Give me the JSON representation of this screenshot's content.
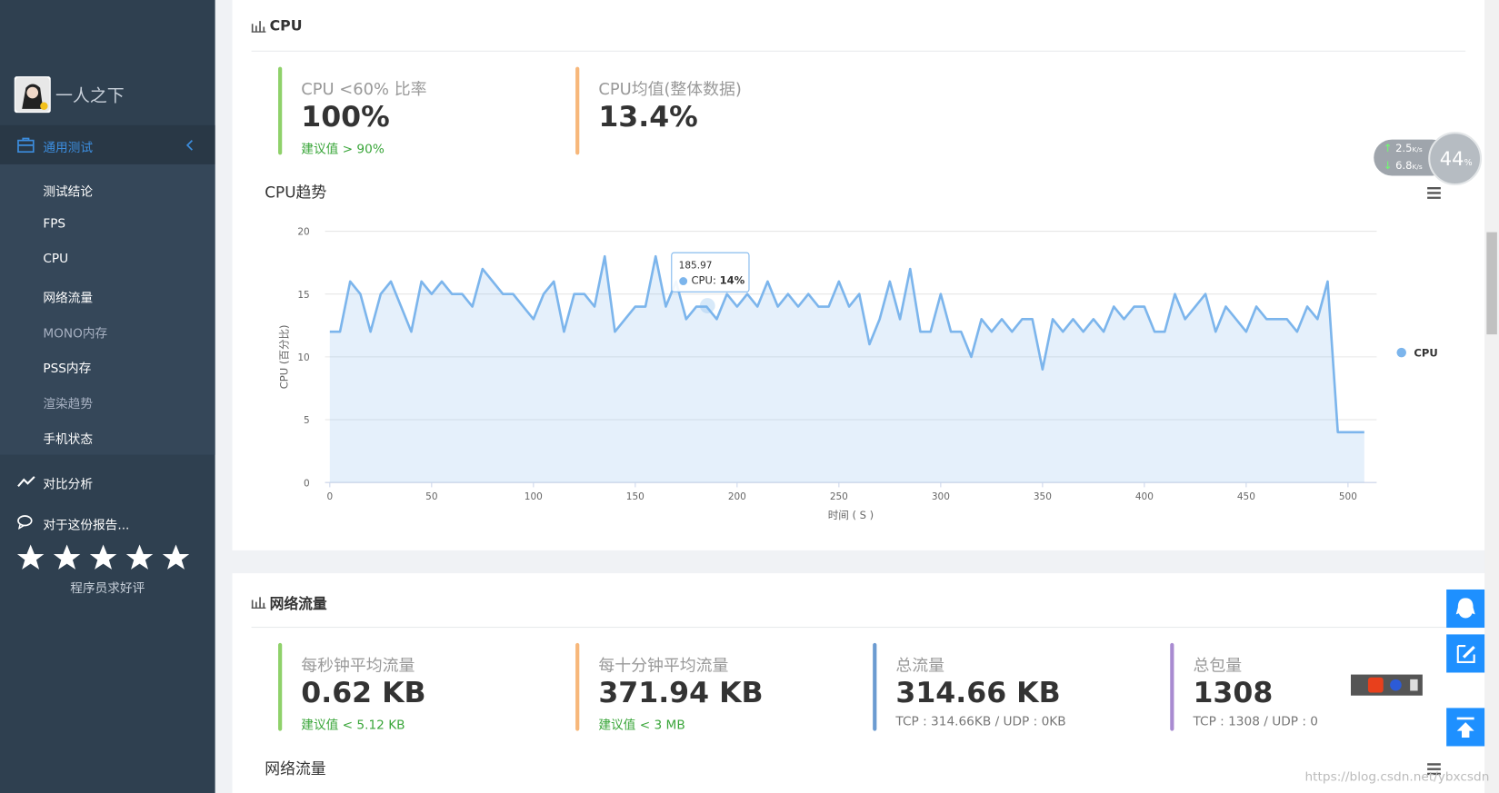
{
  "sidebar": {
    "user": "一人之下",
    "active_menu": "通用测试",
    "items": [
      {
        "label": "测试结论",
        "dimmed": false
      },
      {
        "label": "FPS",
        "dimmed": false
      },
      {
        "label": "CPU",
        "dimmed": false
      },
      {
        "label": "网络流量",
        "dimmed": false
      },
      {
        "label": "MONO内存",
        "dimmed": true
      },
      {
        "label": "PSS内存",
        "dimmed": false
      },
      {
        "label": "渲染趋势",
        "dimmed": true
      },
      {
        "label": "手机状态",
        "dimmed": false
      }
    ],
    "compare": "对比分析",
    "feedback": "对于这份报告...",
    "rating_note": "程序员求好评"
  },
  "cpu_section": {
    "title": "CPU",
    "stats": [
      {
        "title": "CPU <60% 比率",
        "value": "100%",
        "note": "建议值 > 90%",
        "color": "#8fd16a",
        "note_color": "#3aa63a"
      },
      {
        "title": "CPU均值(整体数据)",
        "value": "13.4%",
        "color": "#f7b77a"
      }
    ],
    "chart_title": "CPU趋势"
  },
  "chart_data": {
    "type": "line",
    "xlabel": "时间 ( S )",
    "ylabel": "CPU (百分比)",
    "x": [
      0,
      5,
      10,
      15,
      20,
      25,
      30,
      35,
      40,
      45,
      50,
      55,
      60,
      65,
      70,
      75,
      80,
      85,
      90,
      95,
      100,
      105,
      110,
      115,
      120,
      125,
      130,
      135,
      140,
      145,
      150,
      155,
      160,
      165,
      170,
      175,
      180,
      185,
      190,
      195,
      200,
      205,
      210,
      215,
      220,
      225,
      230,
      235,
      240,
      245,
      250,
      255,
      260,
      265,
      270,
      275,
      280,
      285,
      290,
      295,
      300,
      305,
      310,
      315,
      320,
      325,
      330,
      335,
      340,
      345,
      350,
      355,
      360,
      365,
      370,
      375,
      380,
      385,
      390,
      395,
      400,
      405,
      410,
      415,
      420,
      425,
      430,
      435,
      440,
      445,
      450,
      455,
      460,
      465,
      470,
      475,
      480,
      485,
      490,
      495,
      500,
      505,
      508
    ],
    "series": [
      {
        "name": "CPU",
        "color": "#7cb5ec",
        "values": [
          12,
          12,
          16,
          15,
          12,
          15,
          16,
          14,
          12,
          16,
          15,
          16,
          15,
          15,
          14,
          17,
          16,
          15,
          15,
          14,
          13,
          15,
          16,
          12,
          15,
          15,
          14,
          18,
          12,
          13,
          14,
          14,
          18,
          14,
          16,
          13,
          14,
          14,
          13,
          15,
          14,
          15,
          14,
          16,
          14,
          15,
          14,
          15,
          14,
          14,
          16,
          14,
          15,
          11,
          13,
          16,
          13,
          17,
          12,
          12,
          15,
          12,
          12,
          10,
          13,
          12,
          13,
          12,
          13,
          13,
          9,
          13,
          12,
          13,
          12,
          13,
          12,
          14,
          13,
          14,
          14,
          12,
          12,
          15,
          13,
          14,
          15,
          12,
          14,
          13,
          12,
          14,
          13,
          13,
          13,
          12,
          14,
          13,
          16,
          4,
          4,
          4,
          4
        ]
      }
    ],
    "xlim": [
      0,
      515
    ],
    "ylim": [
      0,
      20
    ],
    "xticks": [
      0,
      50,
      100,
      150,
      200,
      250,
      300,
      350,
      400,
      450,
      500
    ],
    "yticks": [
      0,
      5,
      10,
      15,
      20
    ],
    "grid": true,
    "legend": "right",
    "tooltip": {
      "x": "185.97",
      "text": "CPU:",
      "value": "14%"
    }
  },
  "network_section": {
    "title": "网络流量",
    "stats": [
      {
        "title": "每秒钟平均流量",
        "value": "0.62 KB",
        "note": "建议值 < 5.12 KB",
        "color": "#8fd16a",
        "note_color": "#3aa63a"
      },
      {
        "title": "每十分钟平均流量",
        "value": "371.94 KB",
        "note": "建议值 < 3 MB",
        "color": "#f7b77a",
        "note_color": "#3aa63a"
      },
      {
        "title": "总流量",
        "value": "314.66 KB",
        "note": "TCP : 314.66KB / UDP : 0KB",
        "color": "#6b9bd1",
        "note_color": "#777777"
      },
      {
        "title": "总包量",
        "value": "1308",
        "note": "TCP : 1308 / UDP : 0",
        "color": "#a98bd1",
        "note_color": "#777777"
      }
    ],
    "chart_title": "网络流量"
  },
  "net_widget": {
    "up": "2.5",
    "down": "6.8",
    "unit": "K/s",
    "percent": "44",
    "percent_unit": "%"
  },
  "watermark": "https://blog.csdn.net/ybxcsdn"
}
